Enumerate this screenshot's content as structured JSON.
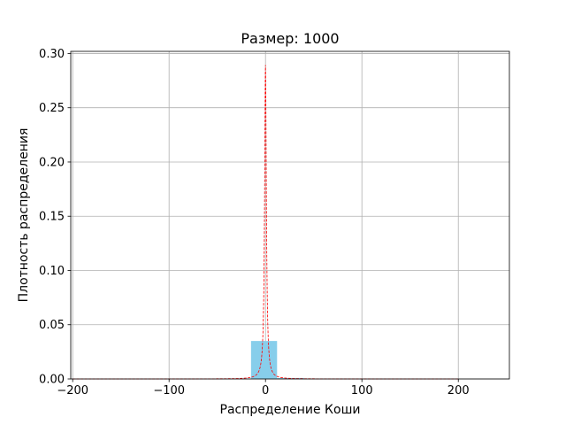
{
  "chart_data": {
    "type": "bar",
    "title": "Размер: 1000",
    "xlabel": "Распределение Коши",
    "ylabel": "Плотность распределения",
    "xlim": [
      -202,
      253
    ],
    "ylim": [
      0,
      0.302
    ],
    "xticks": [
      -200,
      -100,
      0,
      100,
      200
    ],
    "xtick_labels": [
      "−200",
      "−100",
      "0",
      "100",
      "200"
    ],
    "yticks": [
      0,
      0.05,
      0.1,
      0.15,
      0.2,
      0.25,
      0.3
    ],
    "ytick_labels": [
      "0.00",
      "0.05",
      "0.10",
      "0.15",
      "0.20",
      "0.25",
      "0.30"
    ],
    "grid": true,
    "histogram": {
      "color": "#87ceeb",
      "bins": [
        {
          "x0": -190,
          "x1": -175,
          "height": 0.0001
        },
        {
          "x0": -40,
          "x1": -15,
          "height": 0.0004
        },
        {
          "x0": -15,
          "x1": 12,
          "height": 0.035
        },
        {
          "x0": 12,
          "x1": 40,
          "height": 0.0008
        }
      ]
    },
    "pdf_curve": {
      "type": "line",
      "style": "dashed",
      "color": "#ff0000",
      "function": "cauchy",
      "location": 0,
      "scale": 1.1,
      "x_range": [
        -200,
        200
      ]
    }
  }
}
